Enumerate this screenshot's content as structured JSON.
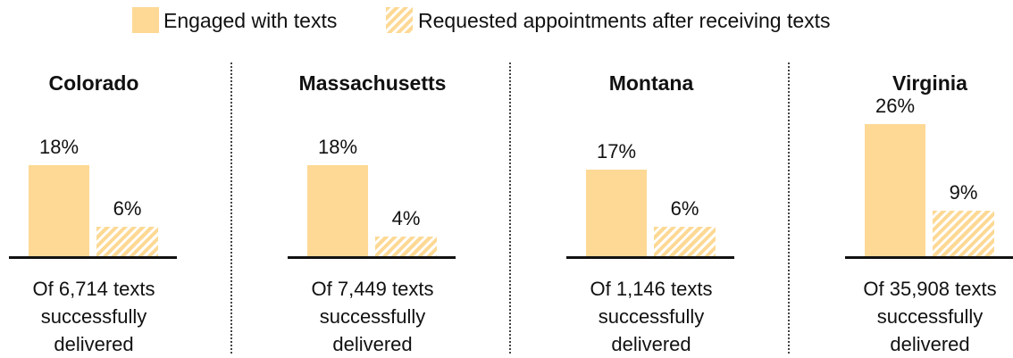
{
  "legend": {
    "series": [
      {
        "name": "Engaged with texts",
        "color": "#fdd995",
        "pattern": "solid"
      },
      {
        "name": "Requested appointments after receiving texts",
        "color": "#fdd995",
        "pattern": "hatched"
      }
    ]
  },
  "chart_data": [
    {
      "type": "bar",
      "title": "Colorado",
      "values": [
        18,
        6
      ],
      "value_labels": [
        "18%",
        "6%"
      ],
      "caption": "Of 6,714 texts successfully delivered"
    },
    {
      "type": "bar",
      "title": "Massachusetts",
      "values": [
        18,
        4
      ],
      "value_labels": [
        "18%",
        "4%"
      ],
      "caption": "Of 7,449 texts successfully delivered"
    },
    {
      "type": "bar",
      "title": "Montana",
      "values": [
        17,
        6
      ],
      "value_labels": [
        "17%",
        "6%"
      ],
      "caption": "Of 1,146 texts successfully delivered"
    },
    {
      "type": "bar",
      "title": "Virginia",
      "values": [
        26,
        9
      ],
      "value_labels": [
        "26%",
        "9%"
      ],
      "caption": "Of 35,908 texts successfully delivered"
    }
  ]
}
